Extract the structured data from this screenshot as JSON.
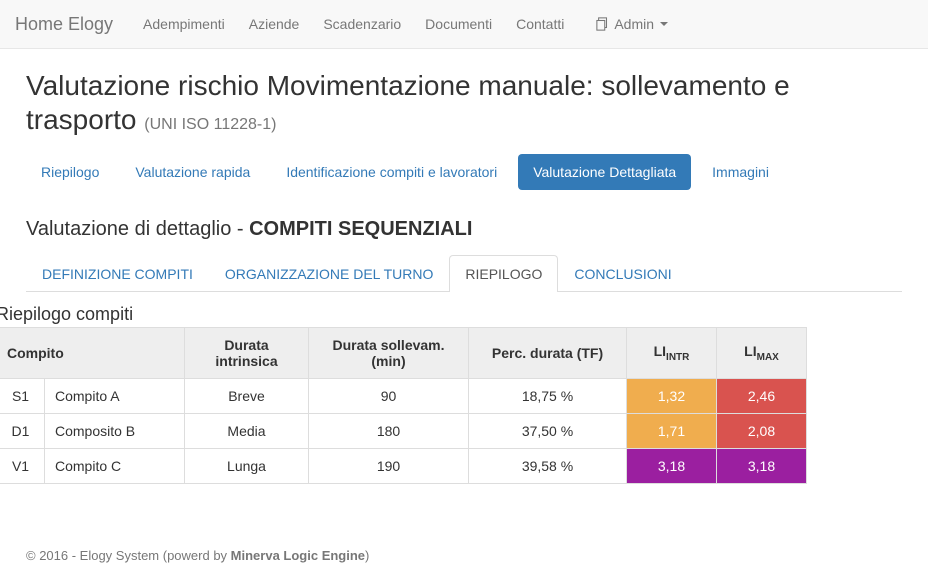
{
  "navbar": {
    "brand": "Home Elogy",
    "items": [
      "Adempimenti",
      "Aziende",
      "Scadenzario",
      "Documenti",
      "Contatti"
    ],
    "admin_label": "Admin"
  },
  "page": {
    "title": "Valutazione rischio Movimentazione manuale: sollevamento e trasporto",
    "title_suffix": "(UNI ISO 11228-1)"
  },
  "pills": {
    "items": [
      "Riepilogo",
      "Valutazione rapida",
      "Identificazione compiti e lavoratori",
      "Valutazione Dettagliata",
      "Immagini"
    ],
    "active_index": 3
  },
  "section": {
    "prefix": "Valutazione di dettaglio - ",
    "bold": "COMPITI SEQUENZIALI"
  },
  "tabs": {
    "items": [
      "DEFINIZIONE COMPITI",
      "ORGANIZZAZIONE DEL TURNO",
      "RIEPILOGO",
      "CONCLUSIONI"
    ],
    "active_index": 2
  },
  "table": {
    "title": "Riepilogo compiti",
    "columns": {
      "code": "",
      "name": "Compito",
      "durata_intr": "Durata intrinsica",
      "durata_soll": "Durata sollevam. (min)",
      "perc": "Perc. durata (TF)",
      "li_intr_base": "LI",
      "li_intr_sub": "INTR",
      "li_max_base": "LI",
      "li_max_sub": "MAX"
    },
    "col_widths": {
      "code": 48,
      "name": 140,
      "durata_intr": 124,
      "durata_soll": 160,
      "perc": 158,
      "li_intr": 90,
      "li_max": 90
    },
    "rows": [
      {
        "code": "S1",
        "name": "Compito A",
        "durata_intr": "Breve",
        "durata_soll": "90",
        "perc": "18,75 %",
        "li_intr": "1,32",
        "li_intr_color": "orange",
        "li_max": "2,46",
        "li_max_color": "red"
      },
      {
        "code": "D1",
        "name": "Composito B",
        "durata_intr": "Media",
        "durata_soll": "180",
        "perc": "37,50 %",
        "li_intr": "1,71",
        "li_intr_color": "orange",
        "li_max": "2,08",
        "li_max_color": "red"
      },
      {
        "code": "V1",
        "name": "Compito C",
        "durata_intr": "Lunga",
        "durata_soll": "190",
        "perc": "39,58 %",
        "li_intr": "3,18",
        "li_intr_color": "purple",
        "li_max": "3,18",
        "li_max_color": "purple"
      }
    ],
    "colors": {
      "orange": "#f0ad4e",
      "red": "#d9534f",
      "purple": "#9b1fa0"
    }
  },
  "footer": {
    "prefix": "© 2016 - Elogy System (powerd by ",
    "strong": "Minerva Logic Engine",
    "suffix": ")"
  }
}
